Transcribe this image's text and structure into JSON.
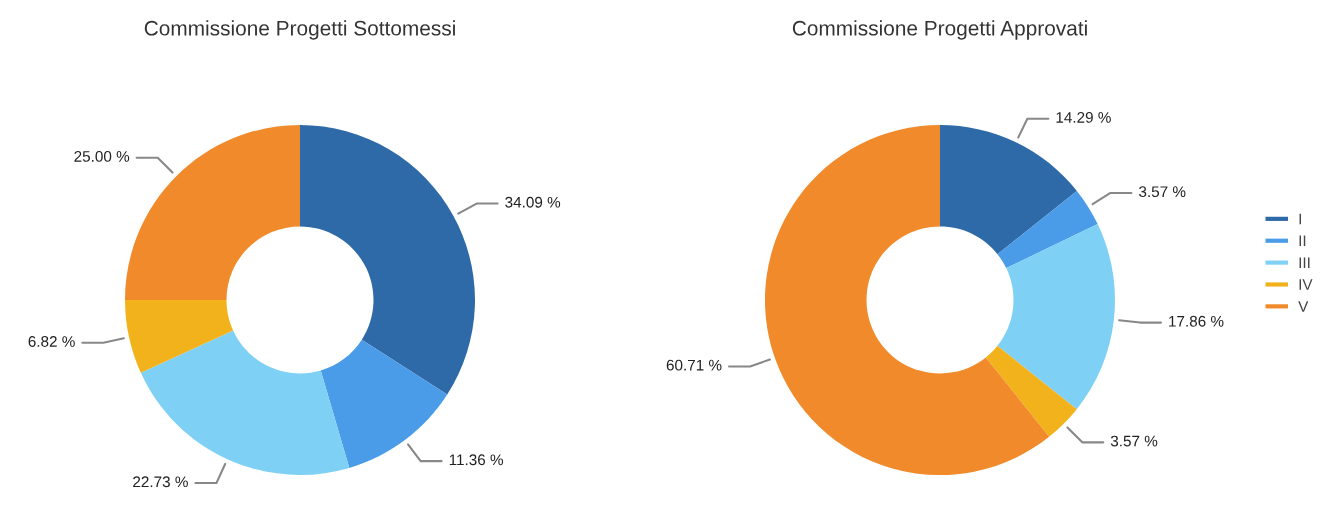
{
  "chart_data": [
    {
      "type": "donut",
      "title": "Commissione Progetti Sottomessi",
      "categories": [
        "I",
        "II",
        "III",
        "IV",
        "V"
      ],
      "values": [
        34.09,
        11.36,
        22.73,
        6.82,
        25.0
      ],
      "value_labels": [
        "34.09 %",
        "11.36 %",
        "22.73 %",
        "6.82 %",
        "25.00 %"
      ],
      "colors": [
        "#2f6aa8",
        "#4a9be8",
        "#7fd0f5",
        "#f2b21c",
        "#f08a2a"
      ],
      "legend": "right"
    },
    {
      "type": "donut",
      "title": "Commissione Progetti Approvati",
      "categories": [
        null,
        null,
        null,
        null,
        null
      ],
      "values": [
        14.29,
        3.57,
        17.86,
        3.57,
        60.71
      ],
      "value_labels": [
        "14.29 %",
        "3.57 %",
        "17.86 %",
        "3.57 %",
        "60.71 %"
      ],
      "colors": [
        "#2f6aa8",
        "#4a9be8",
        "#7fd0f5",
        "#f2b21c",
        "#f08a2a"
      ],
      "legend": false
    }
  ]
}
